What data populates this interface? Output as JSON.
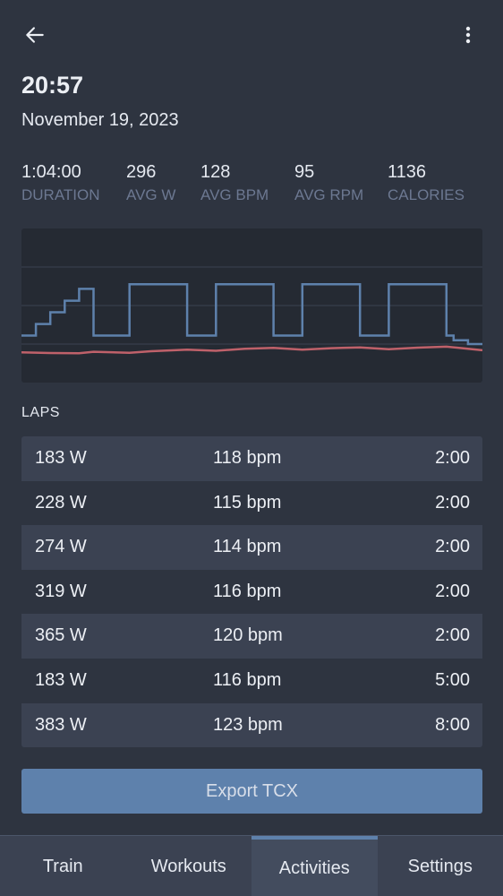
{
  "header": {
    "back_icon": "arrow-left-icon",
    "menu_icon": "more-vertical-icon"
  },
  "activity": {
    "time": "20:57",
    "date": "November 19, 2023"
  },
  "stats": [
    {
      "value": "1:04:00",
      "label": "DURATION"
    },
    {
      "value": "296",
      "label": "AVG W"
    },
    {
      "value": "128",
      "label": "AVG BPM"
    },
    {
      "value": "95",
      "label": "AVG RPM"
    },
    {
      "value": "1136",
      "label": "CALORIES"
    }
  ],
  "chart_data": {
    "type": "line",
    "title": "",
    "xlabel": "",
    "ylabel": "",
    "x_unit": "minutes",
    "xlim": [
      0,
      64
    ],
    "ylim": [
      0,
      600
    ],
    "grid": true,
    "colors": {
      "power": "#5e81ac",
      "heart_rate": "#bf616a"
    },
    "series": [
      {
        "x": [
          0,
          2,
          2,
          4,
          4,
          6,
          6,
          8,
          8,
          10,
          10,
          15,
          15,
          23,
          23,
          27,
          27,
          35,
          35,
          39,
          39,
          47,
          47,
          51,
          51,
          59,
          59,
          60,
          60,
          62,
          62,
          64
        ],
        "y": [
          183,
          183,
          228,
          228,
          274,
          274,
          319,
          319,
          365,
          365,
          183,
          183,
          383,
          383,
          183,
          183,
          383,
          383,
          183,
          183,
          383,
          383,
          183,
          183,
          383,
          383,
          183,
          183,
          165,
          165,
          150,
          150
        ]
      },
      {
        "x": [
          0,
          4,
          8,
          10,
          15,
          18,
          23,
          27,
          31,
          35,
          39,
          43,
          47,
          51,
          55,
          59,
          62,
          64
        ],
        "y": [
          118,
          115,
          114,
          120,
          116,
          122,
          128,
          124,
          132,
          135,
          128,
          134,
          137,
          130,
          136,
          140,
          132,
          126
        ]
      }
    ]
  },
  "laps": {
    "title": "LAPS",
    "rows": [
      {
        "power": "183 W",
        "hr": "118 bpm",
        "duration": "2:00"
      },
      {
        "power": "228 W",
        "hr": "115 bpm",
        "duration": "2:00"
      },
      {
        "power": "274 W",
        "hr": "114 bpm",
        "duration": "2:00"
      },
      {
        "power": "319 W",
        "hr": "116 bpm",
        "duration": "2:00"
      },
      {
        "power": "365 W",
        "hr": "120 bpm",
        "duration": "2:00"
      },
      {
        "power": "183 W",
        "hr": "116 bpm",
        "duration": "5:00"
      },
      {
        "power": "383 W",
        "hr": "123 bpm",
        "duration": "8:00"
      }
    ]
  },
  "export_label": "Export TCX",
  "tabs": [
    {
      "label": "Train",
      "active": false
    },
    {
      "label": "Workouts",
      "active": false
    },
    {
      "label": "Activities",
      "active": true
    },
    {
      "label": "Settings",
      "active": false
    }
  ]
}
